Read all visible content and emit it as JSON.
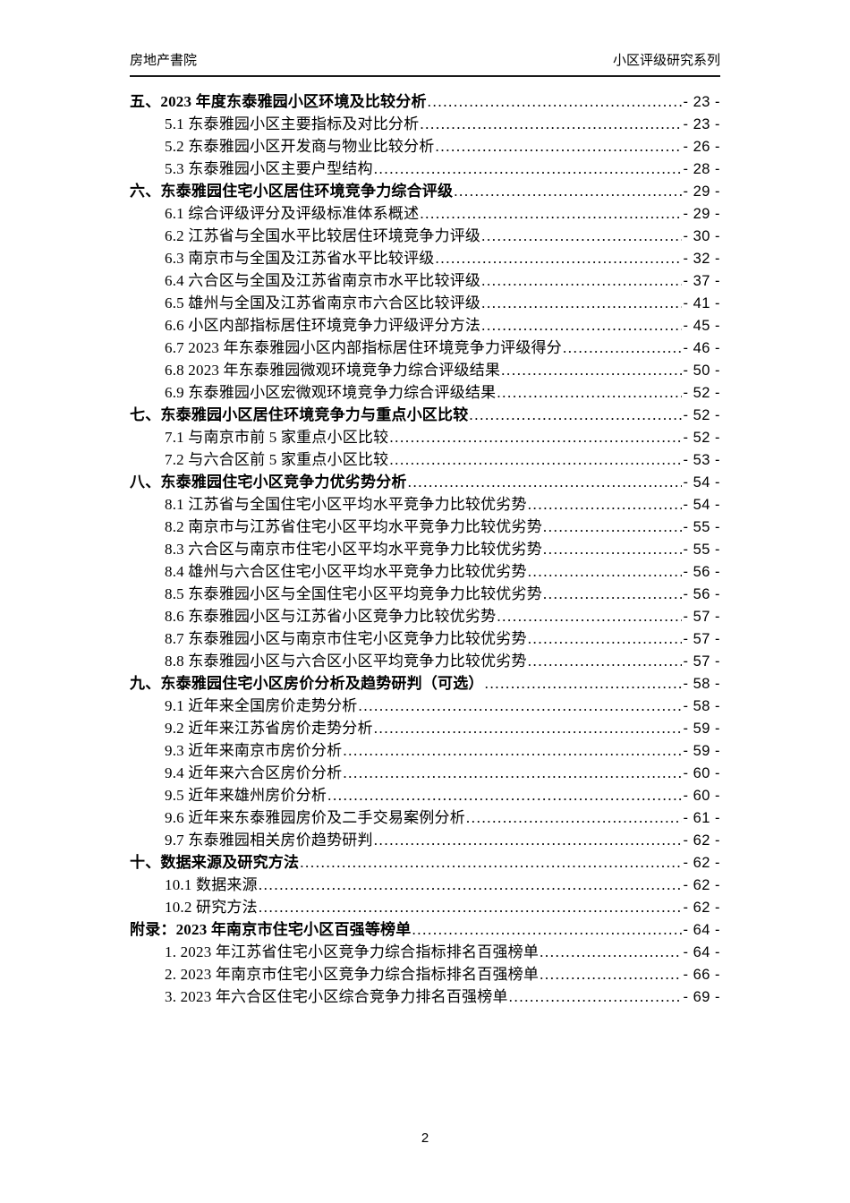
{
  "header": {
    "left": "房地产書院",
    "right": "小区评级研究系列"
  },
  "toc": {
    "entries": [
      {
        "level": 1,
        "label": "五、2023 年度东泰雅园小区环境及比较分析",
        "page": "- 23 -"
      },
      {
        "level": 2,
        "label": "5.1 东泰雅园小区主要指标及对比分析",
        "page": "- 23 -"
      },
      {
        "level": 2,
        "label": "5.2 东泰雅园小区开发商与物业比较分析",
        "page": "- 26 -"
      },
      {
        "level": 2,
        "label": "5.3 东泰雅园小区主要户型结构",
        "page": "- 28 -"
      },
      {
        "level": 1,
        "label": "六、东泰雅园住宅小区居住环境竞争力综合评级",
        "page": "- 29 -"
      },
      {
        "level": 2,
        "label": "6.1 综合评级评分及评级标准体系概述",
        "page": "- 29 -"
      },
      {
        "level": 2,
        "label": "6.2 江苏省与全国水平比较居住环境竞争力评级",
        "page": "- 30 -"
      },
      {
        "level": 2,
        "label": "6.3 南京市与全国及江苏省水平比较评级",
        "page": "- 32 -"
      },
      {
        "level": 2,
        "label": "6.4 六合区与全国及江苏省南京市水平比较评级",
        "page": "- 37 -"
      },
      {
        "level": 2,
        "label": "6.5 雄州与全国及江苏省南京市六合区比较评级",
        "page": "- 41 -"
      },
      {
        "level": 2,
        "label": "6.6 小区内部指标居住环境竞争力评级评分方法",
        "page": "- 45 -"
      },
      {
        "level": 2,
        "label": "6.7 2023 年东泰雅园小区内部指标居住环境竞争力评级得分",
        "page": "- 46 -"
      },
      {
        "level": 2,
        "label": "6.8 2023 年东泰雅园微观环境竞争力综合评级结果",
        "page": "- 50 -"
      },
      {
        "level": 2,
        "label": "6.9 东泰雅园小区宏微观环境竞争力综合评级结果",
        "page": "- 52 -"
      },
      {
        "level": 1,
        "label": "七、东泰雅园小区居住环境竞争力与重点小区比较",
        "page": "- 52 -"
      },
      {
        "level": 2,
        "label": "7.1 与南京市前 5 家重点小区比较",
        "page": "- 52 -"
      },
      {
        "level": 2,
        "label": "7.2 与六合区前 5 家重点小区比较",
        "page": "- 53 -"
      },
      {
        "level": 1,
        "label": "八、东泰雅园住宅小区竞争力优劣势分析",
        "page": "- 54 -"
      },
      {
        "level": 2,
        "label": "8.1 江苏省与全国住宅小区平均水平竞争力比较优劣势",
        "page": "- 54 -"
      },
      {
        "level": 2,
        "label": "8.2 南京市与江苏省住宅小区平均水平竞争力比较优劣势",
        "page": "- 55 -"
      },
      {
        "level": 2,
        "label": "8.3 六合区与南京市住宅小区平均水平竞争力比较优劣势",
        "page": "- 55 -"
      },
      {
        "level": 2,
        "label": "8.4 雄州与六合区住宅小区平均水平竞争力比较优劣势",
        "page": "- 56 -"
      },
      {
        "level": 2,
        "label": "8.5 东泰雅园小区与全国住宅小区平均竞争力比较优劣势",
        "page": "- 56 -"
      },
      {
        "level": 2,
        "label": "8.6 东泰雅园小区与江苏省小区竞争力比较优劣势",
        "page": "- 57 -"
      },
      {
        "level": 2,
        "label": "8.7 东泰雅园小区与南京市住宅小区竞争力比较优劣势",
        "page": "- 57 -"
      },
      {
        "level": 2,
        "label": "8.8 东泰雅园小区与六合区小区平均竞争力比较优劣势",
        "page": "- 57 -"
      },
      {
        "level": 1,
        "label": "九、东泰雅园住宅小区房价分析及趋势研判（可选）",
        "page": "- 58 -"
      },
      {
        "level": 2,
        "label": "9.1 近年来全国房价走势分析",
        "page": "- 58 -"
      },
      {
        "level": 2,
        "label": "9.2 近年来江苏省房价走势分析",
        "page": "- 59 -"
      },
      {
        "level": 2,
        "label": "9.3 近年来南京市房价分析",
        "page": "- 59 -"
      },
      {
        "level": 2,
        "label": "9.4 近年来六合区房价分析",
        "page": "- 60 -"
      },
      {
        "level": 2,
        "label": "9.5 近年来雄州房价分析",
        "page": "- 60 -"
      },
      {
        "level": 2,
        "label": "9.6 近年来东泰雅园房价及二手交易案例分析",
        "page": "- 61 -"
      },
      {
        "level": 2,
        "label": "9.7 东泰雅园相关房价趋势研判",
        "page": "- 62 -"
      },
      {
        "level": 1,
        "label": "十、数据来源及研究方法",
        "page": "- 62 -"
      },
      {
        "level": 2,
        "label": "10.1 数据来源",
        "page": "- 62 -"
      },
      {
        "level": 2,
        "label": "10.2 研究方法",
        "page": "- 62 -"
      },
      {
        "level": 1,
        "label": "附录：2023 年南京市住宅小区百强等榜单",
        "page": "- 64 -"
      },
      {
        "level": 2,
        "label": "1. 2023 年江苏省住宅小区竞争力综合指标排名百强榜单",
        "page": "- 64 -"
      },
      {
        "level": 2,
        "label": "2. 2023 年南京市住宅小区竞争力综合指标排名百强榜单",
        "page": "- 66 -"
      },
      {
        "level": 2,
        "label": "3. 2023 年六合区住宅小区综合竞争力排名百强榜单",
        "page": "- 69 -"
      }
    ]
  },
  "footer": {
    "page_number": "2"
  }
}
